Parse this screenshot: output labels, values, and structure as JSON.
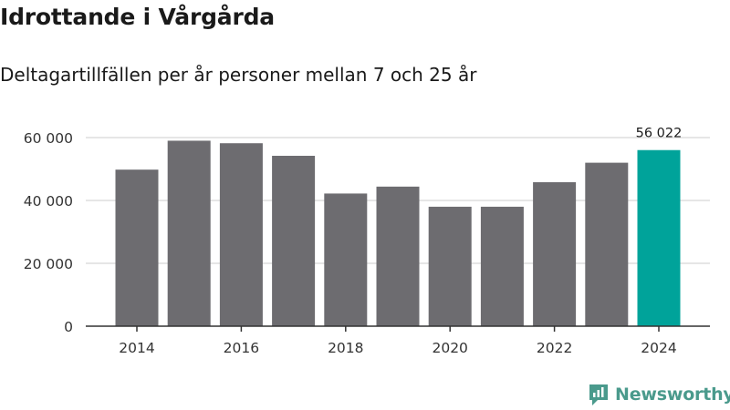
{
  "title": "Idrottande i Vårgårda",
  "subtitle": "Deltagartillfällen per år personer mellan 7 och 25 år",
  "brand": "Newsworthy",
  "colors": {
    "bar": "#6d6c70",
    "highlight": "#00a39a",
    "grid": "#dddddd",
    "axis": "#333333",
    "text": "#333333",
    "brand": "#4a9a8c"
  },
  "chart_data": {
    "type": "bar",
    "title": "Idrottande i Vårgårda",
    "subtitle": "Deltagartillfällen per år personer mellan 7 och 25 år",
    "xlabel": "",
    "ylabel": "",
    "categories": [
      "2014",
      "2015",
      "2016",
      "2017",
      "2018",
      "2019",
      "2020",
      "2021",
      "2022",
      "2023",
      "2024"
    ],
    "values": [
      49800,
      59000,
      58200,
      54200,
      42200,
      44400,
      38000,
      38000,
      45800,
      52000,
      56022
    ],
    "ylim": [
      0,
      60000
    ],
    "yticks": [
      0,
      20000,
      40000,
      60000
    ],
    "ytick_labels": [
      "0",
      "20 000",
      "40 000",
      "60 000"
    ],
    "xtick_labels": [
      "2014",
      "2016",
      "2018",
      "2020",
      "2022",
      "2024"
    ],
    "xtick_years": [
      2014,
      2016,
      2018,
      2020,
      2022,
      2024
    ],
    "highlight_index": 10,
    "annotation": "56 022",
    "grid": true
  }
}
